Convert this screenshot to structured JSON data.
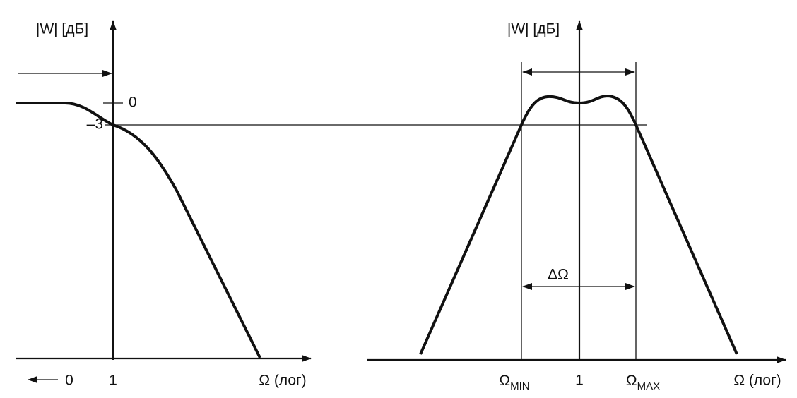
{
  "left_plot": {
    "y_axis_label": "|W| [дБ]",
    "y_labels": [
      "0",
      "–3"
    ],
    "x_labels": [
      "0",
      "1"
    ],
    "x_axis_label": "Ω (лог)"
  },
  "right_plot": {
    "y_axis_label": "|W| [дБ]",
    "bandwidth_label": "ΔΩ",
    "x_min_label": {
      "symbol": "Ω",
      "subscript": "MIN"
    },
    "x_center_label": "1",
    "x_max_label": {
      "symbol": "Ω",
      "subscript": "MAX"
    },
    "x_axis_label": "Ω (лог)"
  }
}
